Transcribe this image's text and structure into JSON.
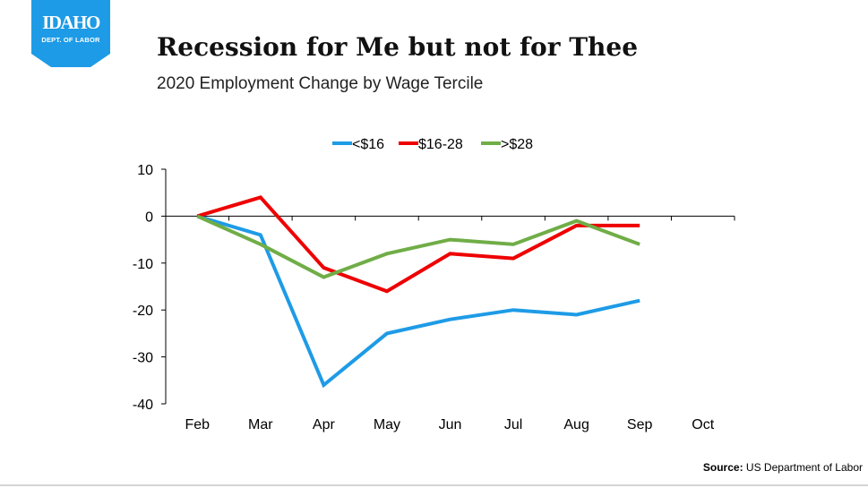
{
  "logo": {
    "brand": "IDAHO",
    "subtitle": "DEPT. OF LABOR",
    "color": "#1e9be6"
  },
  "header": {
    "title": "Recession for Me but not for Thee",
    "subtitle": "2020 Employment Change by Wage Tercile"
  },
  "source": {
    "label": "Source:",
    "text": "US Department of Labor"
  },
  "chart_data": {
    "type": "line",
    "title": "Recession for Me but not for Thee",
    "subtitle": "2020 Employment Change by Wage Tercile",
    "xlabel": "",
    "ylabel": "",
    "categories": [
      "Feb",
      "Mar",
      "Apr",
      "May",
      "Jun",
      "Jul",
      "Aug",
      "Sep",
      "Oct"
    ],
    "ylim": [
      -40,
      10
    ],
    "yticks": [
      10,
      0,
      -10,
      -20,
      -30,
      -40
    ],
    "grid": false,
    "legend_position": "top-center",
    "series": [
      {
        "name": "<$16",
        "color": "#1e9be6",
        "values": [
          0,
          -4,
          -36,
          -25,
          -22,
          -20,
          -21,
          -18,
          null
        ]
      },
      {
        "name": "$16-28",
        "color": "#ee0000",
        "values": [
          0,
          4,
          -11,
          -16,
          -8,
          -9,
          -2,
          -2,
          null
        ]
      },
      {
        "name": ">$28",
        "color": "#70ad47",
        "values": [
          0,
          -6,
          -13,
          -8,
          -5,
          -6,
          -1,
          -6,
          null
        ]
      }
    ]
  }
}
